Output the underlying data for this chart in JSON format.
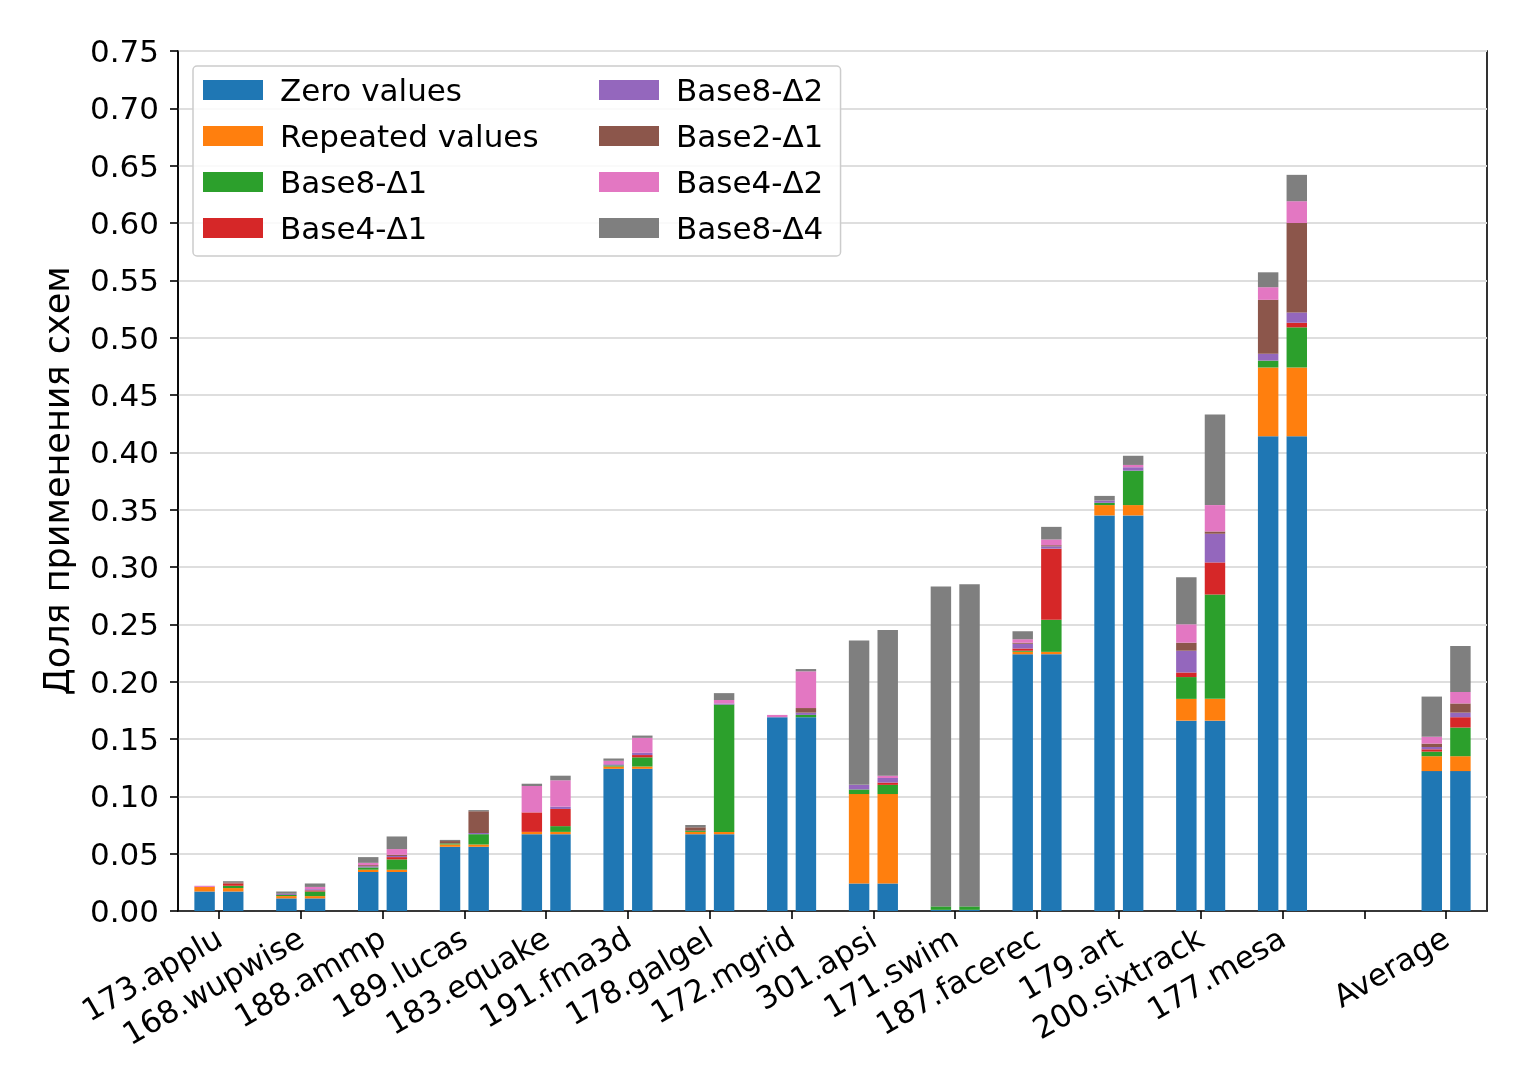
{
  "chart_data": [
    {
      "type": "bar",
      "stacked": true,
      "ylabel": "Доля применения схем",
      "categories": [
        "173.applu",
        "168.wupwise",
        "188.ammp",
        "189.lucas",
        "183.equake",
        "191.fma3d",
        "178.galgel",
        "172.mgrid",
        "301.apsi",
        "171.swim",
        "187.facerec",
        "179.art",
        "200.sixtrack",
        "177.mesa",
        null,
        "Average"
      ],
      "ylim": [
        0,
        0.75
      ],
      "yticks": [
        {
          "value": 0,
          "label": "0.00"
        },
        0.05,
        {
          "value": 0.1,
          "label": "0.10"
        },
        0.15,
        {
          "value": 0.2,
          "label": "0.20"
        },
        0.25,
        {
          "value": 0.3,
          "label": "0.30"
        },
        0.35,
        {
          "value": 0.4,
          "label": "0.40"
        },
        0.45,
        {
          "value": 0.5,
          "label": "0.50"
        },
        0.55,
        {
          "value": 0.6,
          "label": "0.60"
        },
        0.65,
        {
          "value": 0.7,
          "label": "0.70"
        },
        0.75
      ],
      "grid": "y",
      "legend": "top left",
      "series": [
        {
          "name": "Zero values",
          "color": "#1f77b4",
          "values": [
            0.017,
            0.011,
            0.034,
            0.056,
            0.067,
            0.124,
            0.067,
            0.169,
            0.024,
            0.001,
            0.224,
            0.345,
            0.166,
            0.414,
            null,
            0.122
          ]
        },
        {
          "name": "Repeated values",
          "color": "#ff7f0e",
          "values": [
            0.004,
            0.002,
            0.002,
            0.002,
            0.002,
            0.002,
            0.002,
            0,
            0.078,
            0,
            0.002,
            0.009,
            0.019,
            0.06,
            null,
            0.013
          ]
        },
        {
          "name": "Base8-Δ1",
          "color": "#2ca02c",
          "values": [
            0,
            0.001,
            0.002,
            0.001,
            0,
            0.001,
            0.001,
            0,
            0.004,
            0.003,
            0.001,
            0.002,
            0.019,
            0.006,
            null,
            0.004
          ]
        },
        {
          "name": "Base4-Δ1",
          "color": "#d62728",
          "values": [
            0,
            0,
            0,
            0,
            0.017,
            0,
            0,
            0,
            0,
            0,
            0.002,
            0,
            0.004,
            0,
            null,
            0.002
          ]
        },
        {
          "name": "Base8-Δ2",
          "color": "#9467bd",
          "values": [
            0,
            0.001,
            0.001,
            0,
            0,
            0.001,
            0,
            0,
            0.004,
            0,
            0.004,
            0.002,
            0.019,
            0.006,
            null,
            0.002
          ]
        },
        {
          "name": "Base2-Δ1",
          "color": "#8c564b",
          "values": [
            0,
            0,
            0.001,
            0.002,
            0,
            0,
            0.003,
            0,
            0,
            0,
            0.001,
            0,
            0.007,
            0.047,
            null,
            0.003
          ]
        },
        {
          "name": "Base4-Δ2",
          "color": "#e377c2",
          "values": [
            0.001,
            0,
            0.002,
            0,
            0.023,
            0.003,
            0,
            0.002,
            0,
            0,
            0.003,
            0,
            0.016,
            0.011,
            null,
            0.006
          ]
        },
        {
          "name": "Base8-Δ4",
          "color": "#7f7f7f",
          "values": [
            0,
            0.002,
            0.005,
            0.001,
            0.002,
            0.002,
            0.002,
            0,
            0.126,
            0.279,
            0.007,
            0.004,
            0.041,
            0.013,
            null,
            0.035
          ]
        }
      ]
    },
    {
      "type": "bar",
      "stacked": true,
      "tick_labels": false,
      "categories": [
        null,
        null,
        null,
        null,
        null,
        null,
        null,
        null,
        null,
        null,
        null,
        null,
        null,
        null,
        null,
        null
      ],
      "ylim": [
        0,
        0.75
      ],
      "series": [
        {
          "color": "#1f77b4",
          "values": [
            0.017,
            0.011,
            0.034,
            0.056,
            0.067,
            0.124,
            0.067,
            0.169,
            0.024,
            0.001,
            0.224,
            0.345,
            0.166,
            0.414,
            null,
            0.122
          ]
        },
        {
          "color": "#ff7f0e",
          "values": [
            0.003,
            0.002,
            0.002,
            0.002,
            0.002,
            0.002,
            0.002,
            0,
            0.078,
            0,
            0.002,
            0.009,
            0.019,
            0.06,
            null,
            0.013
          ]
        },
        {
          "color": "#2ca02c",
          "values": [
            0.002,
            0.004,
            0.009,
            0.009,
            0.005,
            0.008,
            0.111,
            0.002,
            0.008,
            0.003,
            0.028,
            0.03,
            0.091,
            0.035,
            null,
            0.025
          ]
        },
        {
          "color": "#d62728",
          "values": [
            0.002,
            0.001,
            0.002,
            0,
            0.015,
            0.002,
            0,
            0,
            0.002,
            0,
            0.062,
            0,
            0.028,
            0.004,
            null,
            0.009
          ]
        },
        {
          "color": "#9467bd",
          "values": [
            0,
            0.001,
            0.001,
            0.001,
            0.002,
            0.002,
            0.001,
            0.002,
            0.004,
            0,
            0.002,
            0.003,
            0.025,
            0.009,
            null,
            0.004
          ]
        },
        {
          "color": "#8c564b",
          "values": [
            0.001,
            0,
            0.001,
            0.019,
            0,
            0,
            0,
            0.004,
            0,
            0,
            0.001,
            0,
            0.002,
            0.078,
            null,
            0.008
          ]
        },
        {
          "color": "#e377c2",
          "values": [
            0,
            0.002,
            0.005,
            0,
            0.023,
            0.013,
            0.003,
            0.032,
            0.002,
            0,
            0.005,
            0.002,
            0.023,
            0.019,
            null,
            0.01
          ]
        },
        {
          "color": "#7f7f7f",
          "values": [
            0.001,
            0.003,
            0.011,
            0.001,
            0.004,
            0.002,
            0.006,
            0.002,
            0.127,
            0.281,
            0.011,
            0.008,
            0.079,
            0.023,
            null,
            0.04
          ]
        }
      ]
    }
  ]
}
